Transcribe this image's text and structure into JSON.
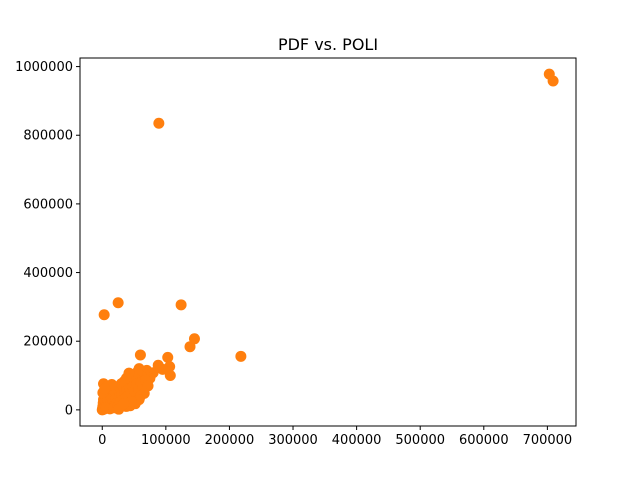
{
  "chart_data": {
    "type": "scatter",
    "title": "PDF vs. POLI",
    "xlabel": "",
    "ylabel": "",
    "xlim": [
      -35000,
      745000
    ],
    "ylim": [
      -47000,
      1025000
    ],
    "x_ticks": [
      0,
      100000,
      200000,
      300000,
      400000,
      500000,
      600000,
      700000
    ],
    "y_ticks": [
      0,
      200000,
      400000,
      600000,
      800000,
      1000000
    ],
    "grid": false,
    "legend": "none",
    "marker_color": "#ff7f0e",
    "series": [
      {
        "points": [
          [
            703000,
            978000
          ],
          [
            709000,
            958000
          ],
          [
            89000,
            835000
          ],
          [
            25000,
            312000
          ],
          [
            124000,
            306000
          ],
          [
            3000,
            277000
          ],
          [
            145000,
            207000
          ],
          [
            138000,
            184000
          ],
          [
            218000,
            156000
          ],
          [
            60000,
            160000
          ],
          [
            103000,
            153000
          ],
          [
            88000,
            130000
          ],
          [
            106000,
            126000
          ],
          [
            107000,
            100000
          ],
          [
            95000,
            118000
          ],
          [
            80000,
            108000
          ],
          [
            75000,
            92000
          ],
          [
            70000,
            115000
          ],
          [
            66000,
            104000
          ],
          [
            62000,
            97000
          ],
          [
            58000,
            120000
          ],
          [
            55000,
            110000
          ],
          [
            52000,
            90000
          ],
          [
            50000,
            80000
          ],
          [
            47000,
            98000
          ],
          [
            44000,
            86000
          ],
          [
            42000,
            107000
          ],
          [
            40000,
            72000
          ],
          [
            38000,
            92000
          ],
          [
            36000,
            64000
          ],
          [
            34000,
            82000
          ],
          [
            32000,
            58000
          ],
          [
            30000,
            76000
          ],
          [
            28000,
            52000
          ],
          [
            26000,
            68000
          ],
          [
            24000,
            46000
          ],
          [
            22000,
            61000
          ],
          [
            20000,
            40000
          ],
          [
            18000,
            55000
          ],
          [
            16000,
            34000
          ],
          [
            14000,
            48000
          ],
          [
            12000,
            28000
          ],
          [
            10000,
            42000
          ],
          [
            8000,
            22000
          ],
          [
            6000,
            36000
          ],
          [
            4000,
            16000
          ],
          [
            2000,
            30000
          ],
          [
            1000,
            10000
          ],
          [
            500,
            4000
          ],
          [
            0,
            0
          ],
          [
            1500,
            20000
          ],
          [
            3000,
            8000
          ],
          [
            5000,
            26000
          ],
          [
            7000,
            12000
          ],
          [
            9000,
            30000
          ],
          [
            11000,
            6000
          ],
          [
            13000,
            18000
          ],
          [
            15000,
            9000
          ],
          [
            17000,
            24000
          ],
          [
            19000,
            14000
          ],
          [
            21000,
            32000
          ],
          [
            23000,
            20000
          ],
          [
            27000,
            38000
          ],
          [
            29000,
            26000
          ],
          [
            31000,
            44000
          ],
          [
            33000,
            30000
          ],
          [
            35000,
            50000
          ],
          [
            37000,
            36000
          ],
          [
            39000,
            56000
          ],
          [
            41000,
            42000
          ],
          [
            43000,
            62000
          ],
          [
            45000,
            48000
          ],
          [
            48000,
            68000
          ],
          [
            51000,
            54000
          ],
          [
            54000,
            74000
          ],
          [
            57000,
            60000
          ],
          [
            61000,
            80000
          ],
          [
            64000,
            66000
          ],
          [
            68000,
            86000
          ],
          [
            72000,
            70000
          ],
          [
            2000,
            76000
          ],
          [
            9000,
            70000
          ],
          [
            15000,
            74000
          ],
          [
            44000,
            12000
          ],
          [
            52000,
            18000
          ],
          [
            38000,
            10000
          ],
          [
            30000,
            12000
          ],
          [
            2500,
            2000
          ],
          [
            6000,
            5000
          ],
          [
            12000,
            3000
          ],
          [
            18000,
            6000
          ],
          [
            24000,
            9000
          ],
          [
            1000,
            50000
          ],
          [
            4000,
            62000
          ],
          [
            26000,
            2000
          ],
          [
            60000,
            40000
          ],
          [
            66000,
            48000
          ],
          [
            58000,
            30000
          ],
          [
            46000,
            24000
          ],
          [
            34000,
            18000
          ]
        ]
      }
    ]
  }
}
